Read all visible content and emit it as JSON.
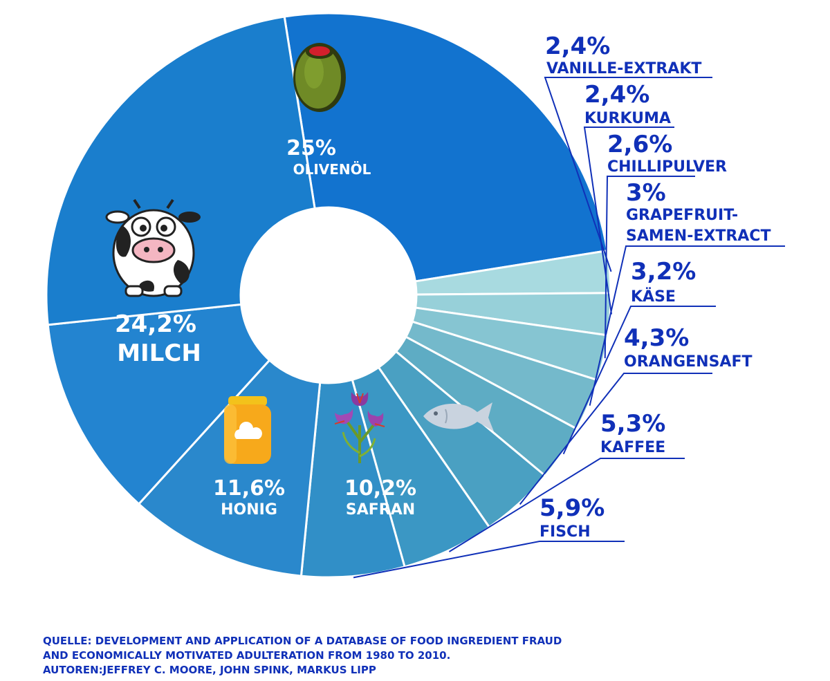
{
  "chart_data": {
    "type": "pie",
    "style": "donut",
    "slices": [
      {
        "key": "olive",
        "name": "OLIVENÖL",
        "value": 25,
        "label": "25%",
        "color": "#1273cf"
      },
      {
        "key": "vanilla",
        "name": "VANILLE-EXTRAKT",
        "value": 2.4,
        "label": "2,4%",
        "color": "#a8dae0"
      },
      {
        "key": "kurkuma",
        "name": "KURKUMA",
        "value": 2.4,
        "label": "2,4%",
        "color": "#97d0d9"
      },
      {
        "key": "chilli",
        "name": "CHILLIPULVER",
        "value": 2.6,
        "label": "2,6%",
        "color": "#86c5d2"
      },
      {
        "key": "grapefruit",
        "name": "GRAPEFRUIT-SAMEN-EXTRACT",
        "name_lines": [
          "GRAPEFRUIT-",
          "SAMEN-EXTRACT"
        ],
        "value": 3,
        "label": "3%",
        "color": "#74b9cb"
      },
      {
        "key": "kaese",
        "name": "KÄSE",
        "value": 3.2,
        "label": "3,2%",
        "color": "#5eacc4"
      },
      {
        "key": "orange",
        "name": "ORANGENSAFT",
        "value": 4.3,
        "label": "4,3%",
        "color": "#4aa0c2"
      },
      {
        "key": "kaffee",
        "name": "KAFFEE",
        "value": 5.3,
        "label": "5,3%",
        "color": "#3b97c4"
      },
      {
        "key": "fisch",
        "name": "FISCH",
        "value": 5.9,
        "label": "5,9%",
        "color": "#318fc7"
      },
      {
        "key": "safran",
        "name": "SAFRAN",
        "value": 10.2,
        "label": "10,2%",
        "color": "#2a88cc"
      },
      {
        "key": "honig",
        "name": "HONIG",
        "value": 11.6,
        "label": "11,6%",
        "color": "#2384d0"
      },
      {
        "key": "milch",
        "name": "MILCH",
        "value": 24.2,
        "label": "24,2%",
        "color": "#1a7ecd"
      }
    ],
    "title": "",
    "legend": "none"
  },
  "icons": {
    "olive": "olive-icon",
    "cow": "cow-icon",
    "honey": "honey-jar-icon",
    "saffron": "saffron-flower-icon",
    "fish": "fish-icon"
  },
  "colors": {
    "text_blue": "#1030b8",
    "separator": "#ffffff"
  },
  "source": {
    "line1": "QUELLE: DEVELOPMENT AND APPLICATION OF A DATABASE OF FOOD INGREDIENT FRAUD",
    "line2": "AND ECONOMICALLY MOTIVATED ADULTERATION FROM 1980 TO 2010.",
    "line3": "AUTOREN:JEFFREY C. MOORE, JOHN SPINK, MARKUS LIPP"
  }
}
